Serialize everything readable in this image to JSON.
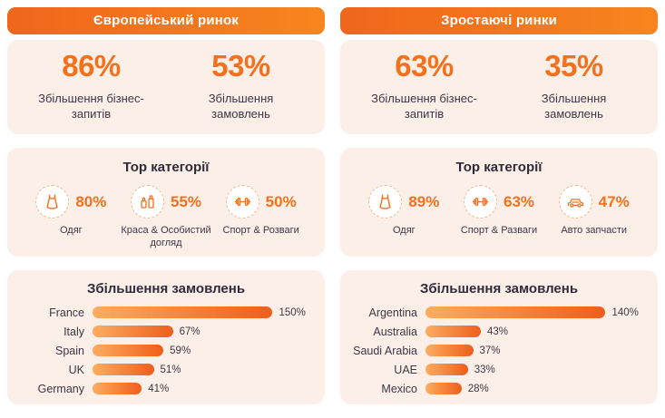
{
  "accent_color": "#F4701D",
  "card_color": "#FCEFE7",
  "left": {
    "header": "Європейський ринок",
    "stats": [
      {
        "value": "86%",
        "label": "Збільшення бізнес-запитів"
      },
      {
        "value": "53%",
        "label": "Збільшення замовлень"
      }
    ],
    "categories": {
      "title": "Тор категорії",
      "items": [
        {
          "icon": "dress-icon",
          "value": "80%",
          "label": "Одяг"
        },
        {
          "icon": "cosmetics-icon",
          "value": "55%",
          "label": "Краса & Особистий догляд"
        },
        {
          "icon": "dumbbell-icon",
          "value": "50%",
          "label": "Спорт & Розваги"
        }
      ]
    },
    "chart": {
      "title": "Збільшення замовлень",
      "categories": [
        "France",
        "Italy",
        "Spain",
        "UK",
        "Germany"
      ],
      "values": [
        150,
        67,
        59,
        51,
        41
      ],
      "value_labels": [
        "150%",
        "67%",
        "59%",
        "51%",
        "41%"
      ]
    }
  },
  "right": {
    "header": "Зростаючі ринки",
    "stats": [
      {
        "value": "63%",
        "label": "Збільшення бізнес-запитів"
      },
      {
        "value": "35%",
        "label": "Збільшення замовлень"
      }
    ],
    "categories": {
      "title": "Тор категорії",
      "items": [
        {
          "icon": "dress-icon",
          "value": "89%",
          "label": "Одяг"
        },
        {
          "icon": "dumbbell-icon",
          "value": "63%",
          "label": "Спорт & Разваги"
        },
        {
          "icon": "car-icon",
          "value": "47%",
          "label": "Авто запчасти"
        }
      ]
    },
    "chart": {
      "title": "Збільшення замовлень",
      "categories": [
        "Argentina",
        "Australia",
        "Saudi Arabia",
        "UAE",
        "Mexico"
      ],
      "values": [
        140,
        43,
        37,
        33,
        28
      ],
      "value_labels": [
        "140%",
        "43%",
        "37%",
        "33%",
        "28%"
      ]
    }
  },
  "chart_data": [
    {
      "type": "bar",
      "orientation": "horizontal",
      "title": "Збільшення замовлень — Європейський ринок",
      "categories": [
        "France",
        "Italy",
        "Spain",
        "UK",
        "Germany"
      ],
      "values": [
        150,
        67,
        59,
        51,
        41
      ],
      "unit": "%",
      "xlim": [
        0,
        150
      ],
      "grid": false,
      "legend": false
    },
    {
      "type": "bar",
      "orientation": "horizontal",
      "title": "Збільшення замовлень — Зростаючі ринки",
      "categories": [
        "Argentina",
        "Australia",
        "Saudi Arabia",
        "UAE",
        "Mexico"
      ],
      "values": [
        140,
        43,
        37,
        33,
        28
      ],
      "unit": "%",
      "xlim": [
        0,
        140
      ],
      "grid": false,
      "legend": false
    }
  ]
}
